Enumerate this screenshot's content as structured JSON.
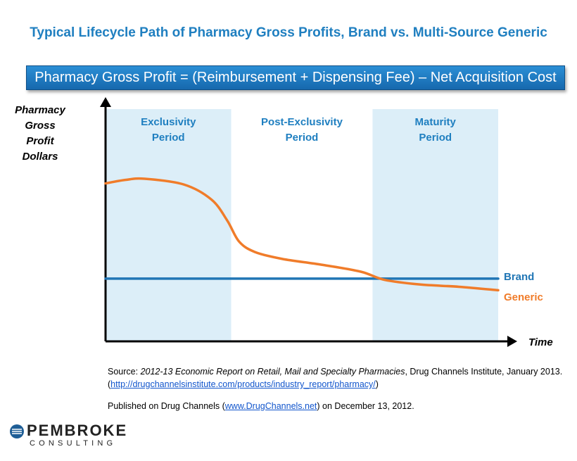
{
  "title": "Typical Lifecycle Path of Pharmacy Gross Profits, Brand vs. Multi-Source Generic",
  "formula": "Pharmacy Gross Profit = (Reimbursement + Dispensing Fee) – Net Acquisition Cost",
  "colors": {
    "title": "#1f7fc0",
    "band": "#dceef8",
    "brand": "#2176b5",
    "generic": "#f07c2a"
  },
  "chart_data": {
    "type": "line",
    "ylabel_lines": [
      "Pharmacy",
      "Gross",
      "Profit",
      "Dollars"
    ],
    "xlabel": "Time",
    "xlim": [
      0,
      100
    ],
    "ylim": [
      0,
      100
    ],
    "periods": [
      {
        "label_lines": [
          "Exclusivity",
          "Period"
        ],
        "start": 0,
        "end": 32,
        "shaded": true
      },
      {
        "label_lines": [
          "Post-Exclusivity",
          "Period"
        ],
        "start": 32,
        "end": 68,
        "shaded": false
      },
      {
        "label_lines": [
          "Maturity",
          "Period"
        ],
        "start": 68,
        "end": 100,
        "shaded": true
      }
    ],
    "series": [
      {
        "name": "Brand",
        "x": [
          0,
          100
        ],
        "y": [
          27,
          27
        ]
      },
      {
        "name": "Generic",
        "x": [
          0,
          5,
          10,
          20,
          27,
          31,
          34,
          38,
          45,
          55,
          65,
          71,
          80,
          90,
          100
        ],
        "y": [
          68,
          69.5,
          70,
          67.5,
          61,
          52,
          43,
          38.5,
          35.5,
          33,
          30,
          26.5,
          24.5,
          23.5,
          22
        ]
      }
    ]
  },
  "source": {
    "prefix": "Source: ",
    "report": "2012-13 Economic Report on Retail, Mail and Specialty Pharmacies",
    "suffix": ", Drug Channels Institute, January 2013.",
    "url": "http://drugchannelsinstitute.com/products/industry_report/pharmacy/"
  },
  "published": {
    "prefix": "Published on Drug Channels (",
    "link": "www.DrugChannels.net",
    "suffix": ") on December 13, 2012."
  },
  "logo": {
    "name": "PEMBROKE",
    "sub": "CONSULTING"
  }
}
